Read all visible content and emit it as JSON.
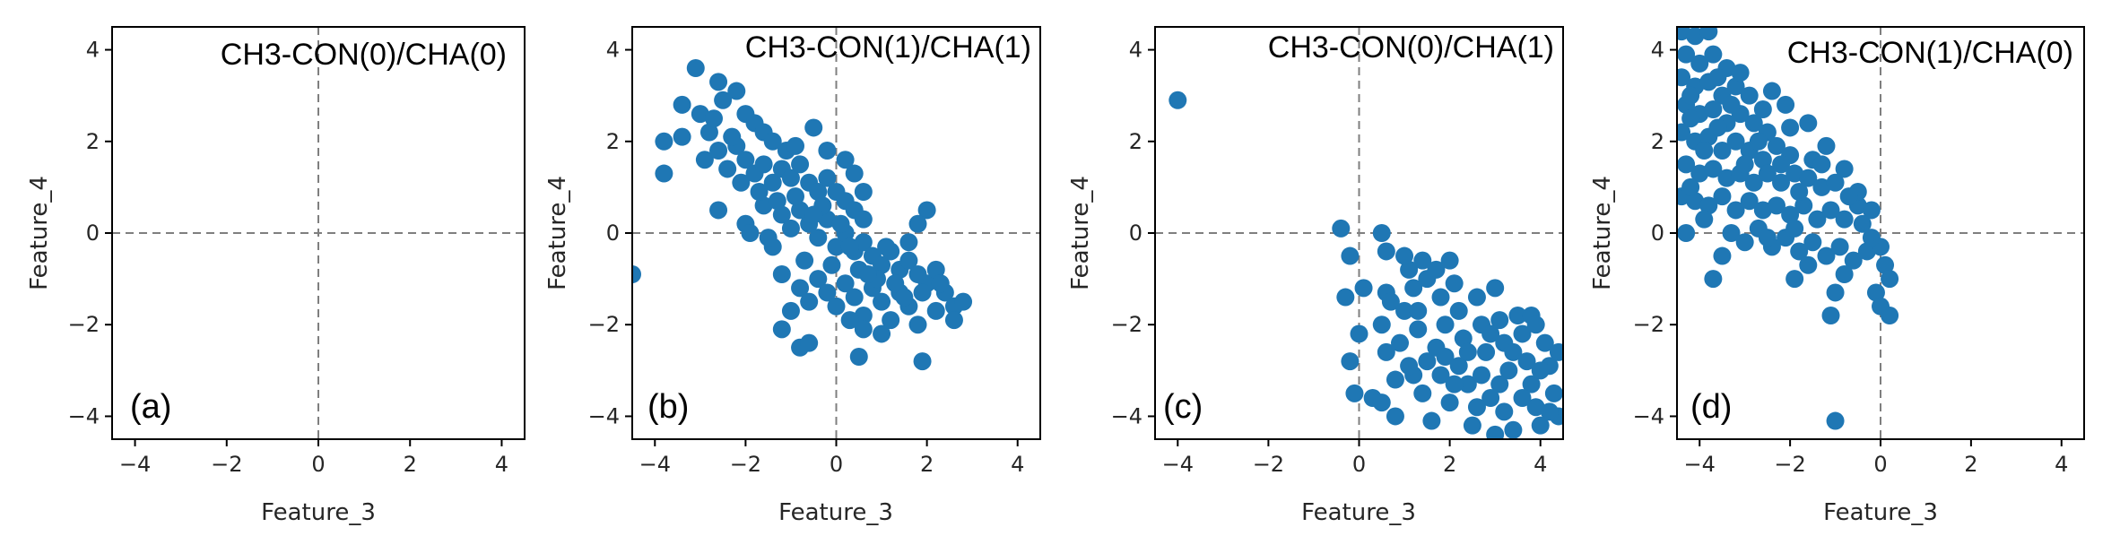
{
  "figure": {
    "marker_color": "#1f77b4",
    "panel_labels": [
      "(a)",
      "(b)",
      "(c)",
      "(d)"
    ]
  },
  "chart_data": [
    {
      "type": "scatter",
      "panel": "(a)",
      "title": "CH3-CON(0)/CHA(0)",
      "xlabel": "Feature_3",
      "ylabel": "Feature_4",
      "xlim": [
        -4.5,
        4.5
      ],
      "ylim": [
        -4.5,
        4.5
      ],
      "xticks": [
        -4,
        -2,
        0,
        2,
        4
      ],
      "yticks": [
        -4,
        -2,
        0,
        2,
        4
      ],
      "reference_lines": {
        "x": 0,
        "y": 0
      },
      "points": []
    },
    {
      "type": "scatter",
      "panel": "(b)",
      "title": "CH3-CON(1)/CHA(1)",
      "xlabel": "Feature_3",
      "ylabel": "Feature_4",
      "xlim": [
        -4.5,
        4.5
      ],
      "ylim": [
        -4.5,
        4.5
      ],
      "xticks": [
        -4,
        -2,
        0,
        2,
        4
      ],
      "yticks": [
        -4,
        -2,
        0,
        2,
        4
      ],
      "reference_lines": {
        "x": 0,
        "y": 0
      },
      "points": [
        [
          -3.1,
          3.6
        ],
        [
          -2.6,
          3.3
        ],
        [
          -3.4,
          2.8
        ],
        [
          -3.8,
          2.0
        ],
        [
          -3.8,
          1.3
        ],
        [
          -3.4,
          2.1
        ],
        [
          -3.0,
          2.6
        ],
        [
          -2.8,
          2.2
        ],
        [
          -2.5,
          2.9
        ],
        [
          -2.2,
          3.1
        ],
        [
          -2.0,
          2.6
        ],
        [
          -1.8,
          2.4
        ],
        [
          -1.6,
          2.2
        ],
        [
          -1.4,
          2.0
        ],
        [
          -2.9,
          1.6
        ],
        [
          -2.6,
          1.8
        ],
        [
          -2.4,
          1.4
        ],
        [
          -2.2,
          1.9
        ],
        [
          -2.0,
          1.6
        ],
        [
          -1.8,
          1.3
        ],
        [
          -1.6,
          1.5
        ],
        [
          -1.4,
          1.1
        ],
        [
          -1.2,
          1.4
        ],
        [
          -1.0,
          1.2
        ],
        [
          -0.8,
          1.5
        ],
        [
          -0.6,
          1.1
        ],
        [
          -0.4,
          0.9
        ],
        [
          -0.2,
          1.2
        ],
        [
          0.0,
          0.9
        ],
        [
          0.2,
          0.7
        ],
        [
          0.4,
          0.5
        ],
        [
          0.6,
          0.3
        ],
        [
          -0.5,
          2.3
        ],
        [
          -0.2,
          1.8
        ],
        [
          0.2,
          1.6
        ],
        [
          0.4,
          1.3
        ],
        [
          0.6,
          0.9
        ],
        [
          -2.6,
          0.5
        ],
        [
          -2.0,
          0.2
        ],
        [
          -1.6,
          0.6
        ],
        [
          -1.4,
          -0.3
        ],
        [
          -1.2,
          0.4
        ],
        [
          -1.0,
          0.1
        ],
        [
          -0.8,
          0.5
        ],
        [
          -0.6,
          0.2
        ],
        [
          -0.4,
          -0.1
        ],
        [
          -0.2,
          0.3
        ],
        [
          0.0,
          -0.3
        ],
        [
          0.2,
          0.0
        ],
        [
          0.4,
          -0.4
        ],
        [
          0.6,
          -0.2
        ],
        [
          0.8,
          -0.5
        ],
        [
          1.0,
          -0.7
        ],
        [
          1.2,
          -0.4
        ],
        [
          1.4,
          -0.8
        ],
        [
          1.6,
          -0.6
        ],
        [
          1.8,
          -0.9
        ],
        [
          2.0,
          -1.1
        ],
        [
          2.2,
          -0.8
        ],
        [
          2.4,
          -1.3
        ],
        [
          2.6,
          -1.6
        ],
        [
          2.8,
          -1.5
        ],
        [
          2.6,
          -1.9
        ],
        [
          2.2,
          -1.7
        ],
        [
          2.0,
          0.5
        ],
        [
          1.8,
          0.2
        ],
        [
          1.6,
          -0.2
        ],
        [
          -1.2,
          -0.9
        ],
        [
          -0.8,
          -1.2
        ],
        [
          -0.6,
          -1.5
        ],
        [
          -0.4,
          -1.0
        ],
        [
          -0.2,
          -1.3
        ],
        [
          0.0,
          -1.6
        ],
        [
          0.2,
          -1.1
        ],
        [
          0.4,
          -1.4
        ],
        [
          0.6,
          -1.8
        ],
        [
          0.8,
          -1.2
        ],
        [
          1.0,
          -1.5
        ],
        [
          1.2,
          -1.9
        ],
        [
          1.4,
          -1.3
        ],
        [
          1.6,
          -1.6
        ],
        [
          1.8,
          -2.0
        ],
        [
          1.0,
          -2.2
        ],
        [
          0.6,
          -2.1
        ],
        [
          0.3,
          -1.9
        ],
        [
          -1.0,
          -1.7
        ],
        [
          -1.2,
          -2.1
        ],
        [
          -0.8,
          -2.5
        ],
        [
          -0.6,
          -2.4
        ],
        [
          0.5,
          -2.7
        ],
        [
          1.9,
          -2.8
        ],
        [
          -4.5,
          -0.9
        ],
        [
          -0.9,
          0.8
        ],
        [
          -0.3,
          0.6
        ],
        [
          0.1,
          0.2
        ],
        [
          0.5,
          -0.8
        ],
        [
          0.9,
          -1.0
        ],
        [
          1.3,
          -1.1
        ],
        [
          -1.7,
          0.9
        ],
        [
          -2.1,
          1.1
        ],
        [
          -0.7,
          -0.6
        ],
        [
          -0.1,
          -0.7
        ],
        [
          0.3,
          -0.3
        ],
        [
          0.7,
          -0.9
        ],
        [
          1.1,
          -0.3
        ],
        [
          1.5,
          -1.4
        ],
        [
          1.9,
          -1.3
        ],
        [
          2.3,
          -1.1
        ],
        [
          -1.9,
          0.0
        ],
        [
          -1.5,
          -0.1
        ],
        [
          -2.3,
          2.1
        ],
        [
          -2.7,
          2.5
        ],
        [
          -1.1,
          1.8
        ],
        [
          -0.9,
          1.9
        ],
        [
          -1.3,
          0.7
        ],
        [
          -0.5,
          0.4
        ]
      ]
    },
    {
      "type": "scatter",
      "panel": "(c)",
      "title": "CH3-CON(0)/CHA(1)",
      "xlabel": "Feature_3",
      "ylabel": "Feature_4",
      "xlim": [
        -4.5,
        4.5
      ],
      "ylim": [
        -4.5,
        4.5
      ],
      "xticks": [
        -4,
        -2,
        0,
        2,
        4
      ],
      "yticks": [
        -4,
        -2,
        0,
        2,
        4
      ],
      "reference_lines": {
        "x": 0,
        "y": 0
      },
      "points": [
        [
          -4.0,
          2.9
        ],
        [
          -0.4,
          0.1
        ],
        [
          -0.2,
          -0.5
        ],
        [
          -0.3,
          -1.4
        ],
        [
          0.1,
          -1.2
        ],
        [
          0.0,
          -2.2
        ],
        [
          -0.2,
          -2.8
        ],
        [
          -0.1,
          -3.5
        ],
        [
          0.3,
          -3.6
        ],
        [
          0.5,
          -3.7
        ],
        [
          0.5,
          0.0
        ],
        [
          0.6,
          -0.4
        ],
        [
          0.6,
          -1.3
        ],
        [
          0.7,
          -1.5
        ],
        [
          0.5,
          -2.0
        ],
        [
          0.6,
          -2.6
        ],
        [
          0.8,
          -3.2
        ],
        [
          0.9,
          -2.4
        ],
        [
          1.0,
          -1.7
        ],
        [
          1.1,
          -0.8
        ],
        [
          1.2,
          -1.2
        ],
        [
          1.4,
          -0.6
        ],
        [
          1.5,
          -1.0
        ],
        [
          1.3,
          -2.1
        ],
        [
          1.5,
          -2.8
        ],
        [
          1.2,
          -3.1
        ],
        [
          1.4,
          -3.5
        ],
        [
          1.7,
          -0.8
        ],
        [
          1.8,
          -1.4
        ],
        [
          1.9,
          -2.0
        ],
        [
          1.7,
          -2.5
        ],
        [
          1.8,
          -3.1
        ],
        [
          2.0,
          -3.7
        ],
        [
          2.1,
          -1.1
        ],
        [
          2.2,
          -1.7
        ],
        [
          2.3,
          -2.3
        ],
        [
          2.2,
          -2.9
        ],
        [
          2.4,
          -3.3
        ],
        [
          2.5,
          -4.2
        ],
        [
          2.6,
          -1.4
        ],
        [
          2.7,
          -2.0
        ],
        [
          2.8,
          -2.6
        ],
        [
          2.7,
          -3.1
        ],
        [
          2.9,
          -3.6
        ],
        [
          3.0,
          -1.2
        ],
        [
          3.1,
          -1.9
        ],
        [
          3.2,
          -2.4
        ],
        [
          3.3,
          -3.0
        ],
        [
          3.2,
          -3.9
        ],
        [
          3.4,
          -4.3
        ],
        [
          3.5,
          -1.8
        ],
        [
          3.6,
          -2.2
        ],
        [
          3.7,
          -2.8
        ],
        [
          3.8,
          -3.3
        ],
        [
          3.9,
          -3.8
        ],
        [
          4.0,
          -4.2
        ],
        [
          4.1,
          -2.4
        ],
        [
          4.2,
          -2.9
        ],
        [
          4.3,
          -3.5
        ],
        [
          4.4,
          -4.0
        ],
        [
          4.4,
          -2.6
        ],
        [
          3.8,
          -1.8
        ],
        [
          2.0,
          -0.6
        ],
        [
          1.0,
          -0.5
        ],
        [
          0.8,
          -4.0
        ],
        [
          1.6,
          -4.1
        ],
        [
          3.0,
          -4.4
        ],
        [
          3.6,
          -3.6
        ],
        [
          2.4,
          -2.6
        ],
        [
          1.1,
          -2.9
        ],
        [
          2.6,
          -3.8
        ],
        [
          3.4,
          -2.6
        ],
        [
          4.0,
          -3.0
        ],
        [
          1.9,
          -2.7
        ],
        [
          2.9,
          -2.2
        ],
        [
          3.9,
          -2.0
        ],
        [
          1.3,
          -1.7
        ],
        [
          2.1,
          -3.3
        ],
        [
          3.1,
          -3.3
        ],
        [
          4.2,
          -3.9
        ]
      ]
    },
    {
      "type": "scatter",
      "panel": "(d)",
      "title": "CH3-CON(1)/CHA(0)",
      "xlabel": "Feature_3",
      "ylabel": "Feature_4",
      "xlim": [
        -4.5,
        4.5
      ],
      "ylim": [
        -4.5,
        4.5
      ],
      "xticks": [
        -4,
        -2,
        0,
        2,
        4
      ],
      "yticks": [
        -4,
        -2,
        0,
        2,
        4
      ],
      "reference_lines": {
        "x": 0,
        "y": 0
      },
      "points": [
        [
          -4.4,
          4.4
        ],
        [
          -4.1,
          4.3
        ],
        [
          -3.8,
          4.4
        ],
        [
          -4.3,
          3.9
        ],
        [
          -4.0,
          3.7
        ],
        [
          -3.7,
          3.9
        ],
        [
          -3.4,
          3.6
        ],
        [
          -4.4,
          3.4
        ],
        [
          -4.1,
          3.2
        ],
        [
          -3.8,
          3.3
        ],
        [
          -3.5,
          3.0
        ],
        [
          -3.2,
          3.2
        ],
        [
          -2.9,
          3.0
        ],
        [
          -4.3,
          2.8
        ],
        [
          -4.0,
          2.6
        ],
        [
          -3.7,
          2.7
        ],
        [
          -3.4,
          2.4
        ],
        [
          -3.1,
          2.6
        ],
        [
          -2.8,
          2.4
        ],
        [
          -2.5,
          2.2
        ],
        [
          -4.4,
          2.2
        ],
        [
          -4.1,
          2.0
        ],
        [
          -3.8,
          2.1
        ],
        [
          -3.5,
          1.8
        ],
        [
          -3.2,
          2.0
        ],
        [
          -2.9,
          1.8
        ],
        [
          -2.6,
          1.6
        ],
        [
          -2.3,
          1.9
        ],
        [
          -2.0,
          1.7
        ],
        [
          -4.3,
          1.5
        ],
        [
          -4.0,
          1.3
        ],
        [
          -3.7,
          1.4
        ],
        [
          -3.4,
          1.2
        ],
        [
          -3.1,
          1.3
        ],
        [
          -2.8,
          1.1
        ],
        [
          -2.5,
          1.3
        ],
        [
          -2.2,
          1.1
        ],
        [
          -1.9,
          1.3
        ],
        [
          -1.6,
          1.2
        ],
        [
          -1.3,
          1.0
        ],
        [
          -1.0,
          1.1
        ],
        [
          -4.4,
          0.8
        ],
        [
          -4.1,
          0.7
        ],
        [
          -3.8,
          0.6
        ],
        [
          -3.5,
          0.8
        ],
        [
          -3.2,
          0.5
        ],
        [
          -2.9,
          0.7
        ],
        [
          -2.6,
          0.5
        ],
        [
          -2.3,
          0.6
        ],
        [
          -2.0,
          0.4
        ],
        [
          -1.7,
          0.6
        ],
        [
          -1.4,
          0.3
        ],
        [
          -1.1,
          0.5
        ],
        [
          -0.8,
          0.3
        ],
        [
          -0.5,
          0.6
        ],
        [
          -0.2,
          0.5
        ],
        [
          -0.5,
          0.9
        ],
        [
          -0.8,
          1.4
        ],
        [
          -1.2,
          1.9
        ],
        [
          -1.6,
          2.4
        ],
        [
          -2.1,
          2.8
        ],
        [
          -2.4,
          3.1
        ],
        [
          -3.3,
          0.0
        ],
        [
          -3.0,
          -0.2
        ],
        [
          -2.7,
          0.1
        ],
        [
          -2.4,
          -0.3
        ],
        [
          -2.1,
          -0.1
        ],
        [
          -1.8,
          -0.4
        ],
        [
          -1.5,
          -0.2
        ],
        [
          -1.2,
          -0.5
        ],
        [
          -0.9,
          -0.3
        ],
        [
          -0.6,
          -0.6
        ],
        [
          -0.3,
          -0.4
        ],
        [
          0.0,
          -0.3
        ],
        [
          0.1,
          -0.7
        ],
        [
          0.2,
          -1.0
        ],
        [
          -0.1,
          -1.3
        ],
        [
          0.0,
          -1.6
        ],
        [
          0.2,
          -1.8
        ],
        [
          -1.0,
          -1.3
        ],
        [
          -1.1,
          -1.8
        ],
        [
          -1.9,
          -1.0
        ],
        [
          -3.5,
          -0.5
        ],
        [
          -4.3,
          0.0
        ],
        [
          -3.7,
          -1.0
        ],
        [
          -1.0,
          -4.1
        ],
        [
          -4.2,
          1.0
        ],
        [
          -3.6,
          2.3
        ],
        [
          -2.7,
          2.0
        ],
        [
          -3.0,
          1.5
        ],
        [
          -1.8,
          0.9
        ],
        [
          -1.5,
          1.6
        ],
        [
          -2.2,
          1.5
        ],
        [
          -3.9,
          1.8
        ],
        [
          -4.2,
          2.5
        ],
        [
          -3.3,
          2.8
        ],
        [
          -2.6,
          2.7
        ],
        [
          -3.6,
          3.4
        ],
        [
          -3.1,
          3.5
        ],
        [
          -4.2,
          3.0
        ],
        [
          -2.0,
          2.3
        ],
        [
          -1.3,
          1.5
        ],
        [
          -0.7,
          0.8
        ],
        [
          -1.9,
          0.1
        ],
        [
          -2.5,
          -0.1
        ],
        [
          -3.9,
          0.3
        ],
        [
          -0.4,
          0.2
        ],
        [
          -0.2,
          -0.1
        ],
        [
          -1.6,
          -0.7
        ],
        [
          -0.8,
          -0.9
        ]
      ]
    }
  ]
}
